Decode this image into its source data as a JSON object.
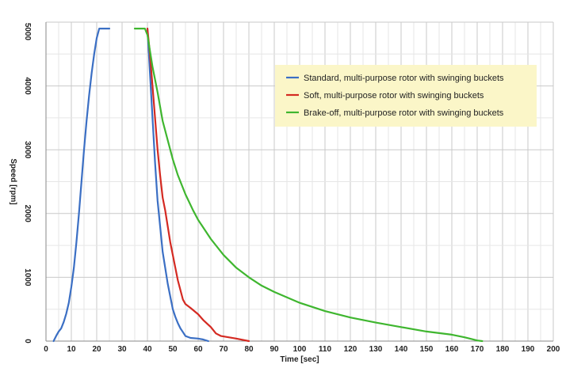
{
  "chart_data": {
    "type": "line",
    "xlabel": "Time [sec]",
    "ylabel": "Speed [rpm]",
    "xlim": [
      0,
      200
    ],
    "ylim": [
      0,
      5000
    ],
    "x_ticks": [
      0,
      10,
      20,
      30,
      40,
      50,
      60,
      70,
      80,
      90,
      100,
      110,
      120,
      130,
      140,
      150,
      160,
      170,
      180,
      190,
      200
    ],
    "y_ticks": [
      0,
      1000,
      2000,
      3000,
      4000,
      5000
    ],
    "grid": true,
    "legend_position": "top-right",
    "legend_background": "#fbf6c8",
    "series": [
      {
        "name": "Standard, multi-purpose rotor with swinging buckets",
        "color": "#3b6fc4",
        "segments": [
          [
            [
              3,
              0
            ],
            [
              4,
              80
            ],
            [
              5,
              150
            ],
            [
              6,
              200
            ],
            [
              7,
              300
            ],
            [
              8,
              430
            ],
            [
              9,
              600
            ],
            [
              10,
              850
            ],
            [
              11,
              1150
            ],
            [
              12,
              1550
            ],
            [
              13,
              2000
            ],
            [
              14,
              2500
            ],
            [
              15,
              3000
            ],
            [
              16,
              3450
            ],
            [
              17,
              3850
            ],
            [
              18,
              4200
            ],
            [
              19,
              4500
            ],
            [
              20,
              4750
            ],
            [
              21,
              4900
            ],
            [
              22,
              4900
            ],
            [
              25,
              4900
            ]
          ],
          [
            [
              40,
              4900
            ],
            [
              41,
              4200
            ],
            [
              42,
              3500
            ],
            [
              43,
              2800
            ],
            [
              44,
              2200
            ],
            [
              45,
              1800
            ],
            [
              46,
              1400
            ],
            [
              47,
              1150
            ],
            [
              48,
              900
            ],
            [
              49,
              700
            ],
            [
              50,
              500
            ],
            [
              51,
              380
            ],
            [
              52,
              280
            ],
            [
              53,
              200
            ],
            [
              54,
              140
            ],
            [
              55,
              80
            ],
            [
              57,
              50
            ],
            [
              60,
              40
            ],
            [
              62,
              25
            ],
            [
              64,
              0
            ]
          ]
        ]
      },
      {
        "name": "Soft, multi-purpose rotor with swinging buckets",
        "color": "#d42a22",
        "segments": [
          [
            [
              40,
              4900
            ],
            [
              41,
              4500
            ],
            [
              42,
              4000
            ],
            [
              43,
              3500
            ],
            [
              44,
              3000
            ],
            [
              45,
              2600
            ],
            [
              46,
              2250
            ],
            [
              47,
              2050
            ],
            [
              48,
              1800
            ],
            [
              49,
              1550
            ],
            [
              50,
              1350
            ],
            [
              51,
              1150
            ],
            [
              52,
              950
            ],
            [
              53,
              800
            ],
            [
              54,
              650
            ],
            [
              55,
              580
            ],
            [
              57,
              520
            ],
            [
              60,
              420
            ],
            [
              62,
              330
            ],
            [
              65,
              220
            ],
            [
              67,
              120
            ],
            [
              69,
              80
            ],
            [
              72,
              60
            ],
            [
              75,
              40
            ],
            [
              80,
              0
            ]
          ]
        ]
      },
      {
        "name": "Brake-off, multi-purpose rotor with swinging buckets",
        "color": "#3fb62f",
        "segments": [
          [
            [
              35,
              4900
            ],
            [
              39,
              4900
            ],
            [
              40,
              4800
            ],
            [
              42,
              4300
            ],
            [
              44,
              3900
            ],
            [
              46,
              3450
            ],
            [
              48,
              3150
            ],
            [
              50,
              2850
            ],
            [
              52,
              2600
            ],
            [
              55,
              2300
            ],
            [
              58,
              2050
            ],
            [
              60,
              1900
            ],
            [
              65,
              1600
            ],
            [
              70,
              1350
            ],
            [
              75,
              1150
            ],
            [
              80,
              1000
            ],
            [
              85,
              870
            ],
            [
              90,
              770
            ],
            [
              100,
              600
            ],
            [
              110,
              470
            ],
            [
              120,
              370
            ],
            [
              130,
              290
            ],
            [
              140,
              220
            ],
            [
              150,
              150
            ],
            [
              160,
              100
            ],
            [
              165,
              60
            ],
            [
              168,
              30
            ],
            [
              170,
              10
            ],
            [
              172,
              0
            ]
          ]
        ]
      }
    ]
  }
}
